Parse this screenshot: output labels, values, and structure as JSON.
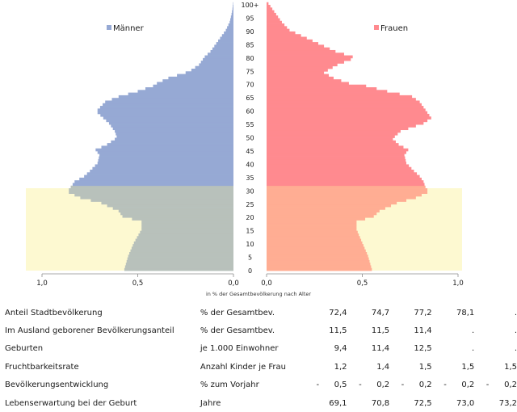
{
  "chart_data": {
    "type": "bar",
    "subtype": "population-pyramid",
    "xlabel": "in % der Gesamtbevölkerung nach Alter",
    "age_tick_labels": [
      "0",
      "5",
      "10",
      "15",
      "20",
      "25",
      "30",
      "35",
      "40",
      "45",
      "50",
      "55",
      "60",
      "65",
      "70",
      "75",
      "80",
      "85",
      "90",
      "95",
      "100+"
    ],
    "x_tick_labels_left": [
      "1,0",
      "0,5",
      "0,0"
    ],
    "x_tick_labels_right": [
      "0,0",
      "0,5",
      "1,0"
    ],
    "xlim": [
      0,
      1.0
    ],
    "age_max": 100,
    "highlight_age_range": [
      0,
      31
    ],
    "colors": {
      "maenner": "#96a9d4",
      "frauen": "#ff8a8f",
      "highlight_band": "#fdf9d1",
      "maenner_in_band": "#b8c1bb",
      "frauen_in_band": "#ffad93"
    },
    "legend": {
      "position": "top",
      "maenner": "Männer",
      "frauen": "Frauen"
    },
    "series": [
      {
        "name": "Männer",
        "ages": [
          0,
          5,
          10,
          15,
          18,
          20,
          22,
          25,
          27,
          29,
          30,
          31,
          33,
          35,
          37,
          40,
          43,
          45,
          47,
          49,
          50,
          52,
          55,
          57,
          59,
          60,
          63,
          65,
          67,
          69,
          70,
          72,
          74,
          75,
          77,
          79,
          80,
          82,
          85,
          88,
          90,
          93,
          96,
          98,
          100
        ],
        "values": [
          0.57,
          0.55,
          0.52,
          0.48,
          0.48,
          0.58,
          0.6,
          0.69,
          0.8,
          0.86,
          0.86,
          0.85,
          0.83,
          0.78,
          0.75,
          0.71,
          0.7,
          0.72,
          0.66,
          0.62,
          0.61,
          0.62,
          0.65,
          0.68,
          0.71,
          0.71,
          0.67,
          0.6,
          0.5,
          0.42,
          0.4,
          0.34,
          0.25,
          0.22,
          0.18,
          0.16,
          0.15,
          0.12,
          0.09,
          0.06,
          0.04,
          0.02,
          0.01,
          0.005,
          0.002
        ]
      },
      {
        "name": "Frauen",
        "ages": [
          0,
          5,
          10,
          15,
          18,
          20,
          22,
          25,
          27,
          29,
          30,
          31,
          33,
          35,
          37,
          40,
          43,
          45,
          47,
          49,
          50,
          52,
          55,
          57,
          59,
          60,
          63,
          65,
          67,
          69,
          70,
          72,
          74,
          75,
          77,
          79,
          80,
          82,
          85,
          88,
          90,
          93,
          96,
          98,
          100
        ],
        "values": [
          0.55,
          0.53,
          0.5,
          0.47,
          0.47,
          0.56,
          0.59,
          0.68,
          0.78,
          0.84,
          0.84,
          0.83,
          0.82,
          0.8,
          0.77,
          0.73,
          0.72,
          0.74,
          0.69,
          0.66,
          0.67,
          0.7,
          0.82,
          0.86,
          0.84,
          0.83,
          0.8,
          0.76,
          0.63,
          0.52,
          0.43,
          0.35,
          0.3,
          0.32,
          0.37,
          0.44,
          0.45,
          0.36,
          0.27,
          0.18,
          0.12,
          0.08,
          0.05,
          0.03,
          0.01
        ]
      }
    ]
  },
  "stats": {
    "rows": [
      {
        "label": "Anteil Stadtbevölkerung",
        "unit": "% der Gesamtbev.",
        "values": [
          {
            "sign": "",
            "value": "72,4"
          },
          {
            "sign": "",
            "value": "74,7"
          },
          {
            "sign": "",
            "value": "77,2"
          },
          {
            "sign": "",
            "value": "78,1"
          },
          {
            "sign": "",
            "value": "."
          }
        ]
      },
      {
        "label": "Im Ausland geborener Bevölkerungsanteil",
        "unit": "% der Gesamtbev.",
        "values": [
          {
            "sign": "",
            "value": "11,5"
          },
          {
            "sign": "",
            "value": "11,5"
          },
          {
            "sign": "",
            "value": "11,4"
          },
          {
            "sign": "",
            "value": "."
          },
          {
            "sign": "",
            "value": "."
          }
        ]
      },
      {
        "label": "Geburten",
        "unit": "je 1.000 Einwohner",
        "values": [
          {
            "sign": "",
            "value": "9,4"
          },
          {
            "sign": "",
            "value": "11,4"
          },
          {
            "sign": "",
            "value": "12,5"
          },
          {
            "sign": "",
            "value": "."
          },
          {
            "sign": "",
            "value": "."
          }
        ]
      },
      {
        "label": "Fruchtbarkeitsrate",
        "unit": "Anzahl Kinder je Frau",
        "values": [
          {
            "sign": "",
            "value": "1,2"
          },
          {
            "sign": "",
            "value": "1,4"
          },
          {
            "sign": "",
            "value": "1,5"
          },
          {
            "sign": "",
            "value": "1,5"
          },
          {
            "sign": "",
            "value": "1,5"
          }
        ]
      },
      {
        "label": "Bevölkerungsentwicklung",
        "unit": "% zum Vorjahr",
        "values": [
          {
            "sign": "-",
            "value": "0,5"
          },
          {
            "sign": "-",
            "value": "0,2"
          },
          {
            "sign": "-",
            "value": "0,2"
          },
          {
            "sign": "-",
            "value": "0,2"
          },
          {
            "sign": "-",
            "value": "0,2"
          }
        ]
      },
      {
        "label": "Lebenserwartung bei der Geburt",
        "unit": "Jahre",
        "values": [
          {
            "sign": "",
            "value": "69,1"
          },
          {
            "sign": "",
            "value": "70,8"
          },
          {
            "sign": "",
            "value": "72,5"
          },
          {
            "sign": "",
            "value": "73,0"
          },
          {
            "sign": "",
            "value": "73,2"
          }
        ]
      }
    ]
  }
}
